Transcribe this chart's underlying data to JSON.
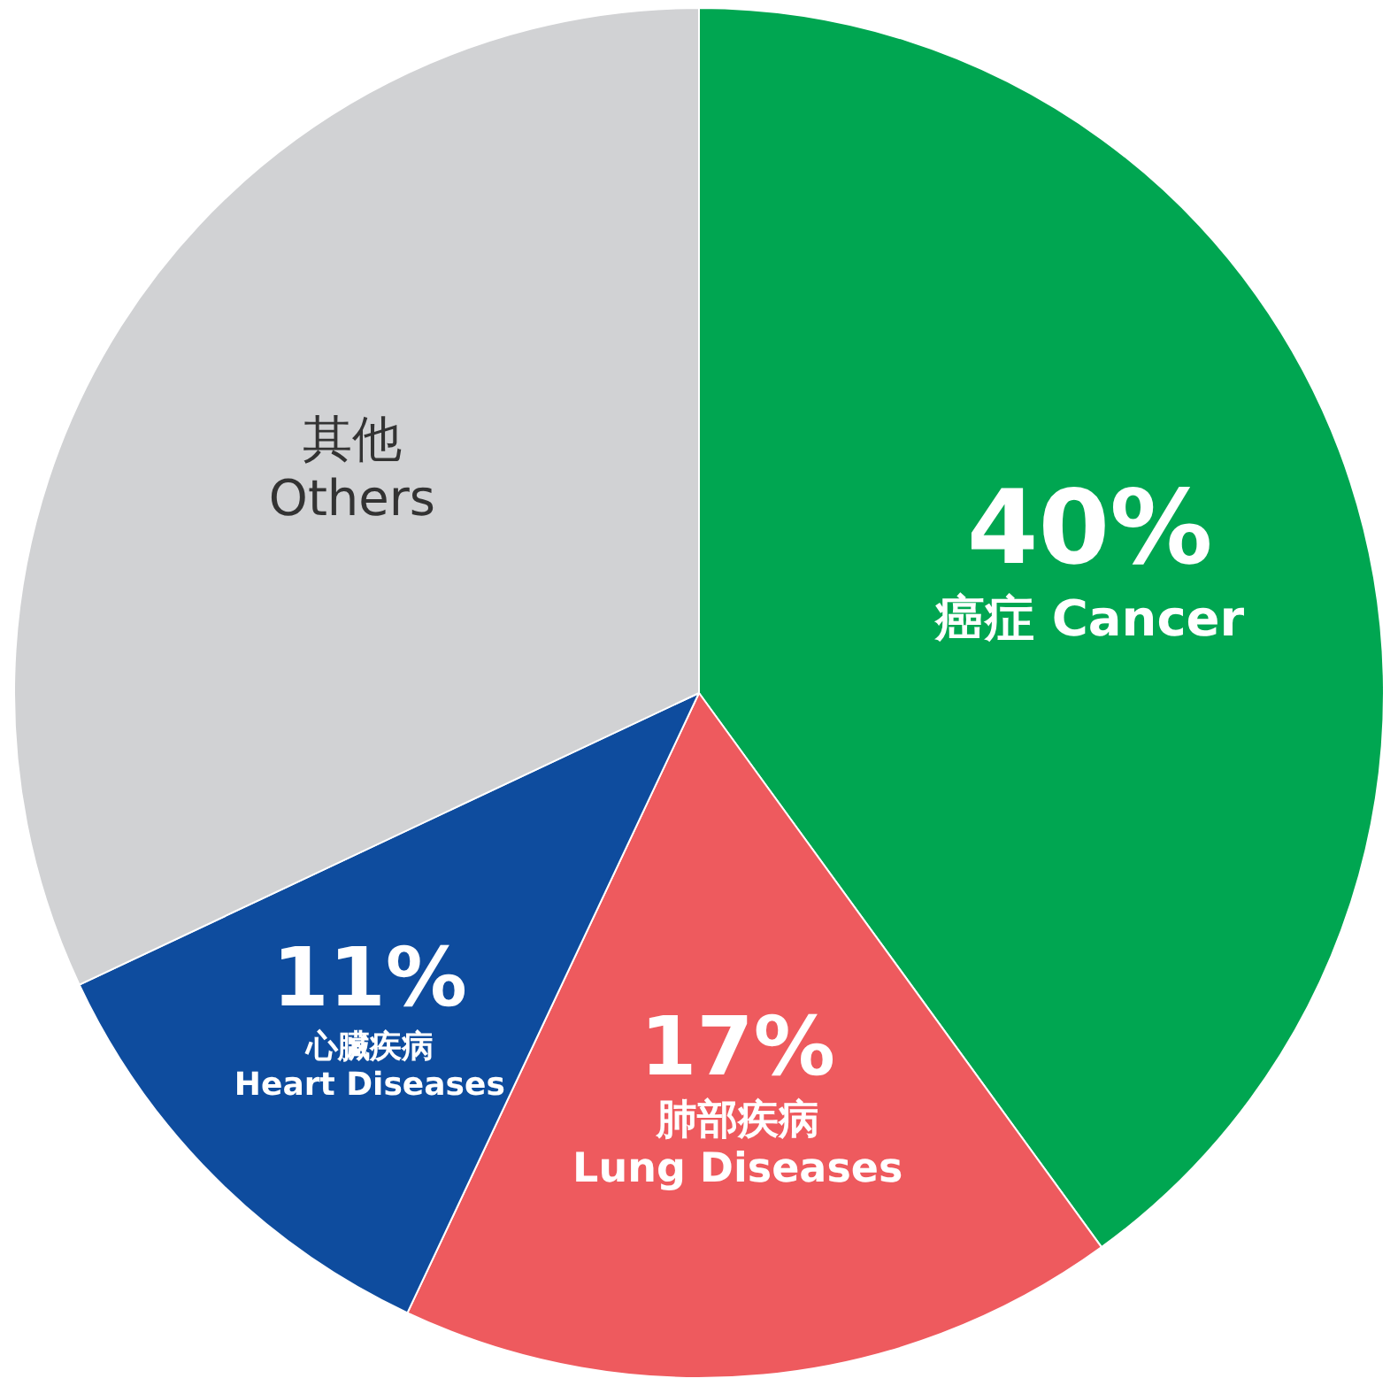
{
  "chart_data": {
    "type": "pie",
    "categories": [
      "癌症 Cancer",
      "肺部疾病\nLung Diseases",
      "心臟疾病\nHeart Diseases",
      "其他\nOthers"
    ],
    "values": [
      40,
      17,
      11,
      32
    ],
    "colors": [
      "#00a651",
      "#ee5a5e",
      "#0e4c9e",
      "#d1d2d4"
    ],
    "value_labels": [
      "40%",
      "17%",
      "11%",
      null
    ],
    "legend": false
  }
}
